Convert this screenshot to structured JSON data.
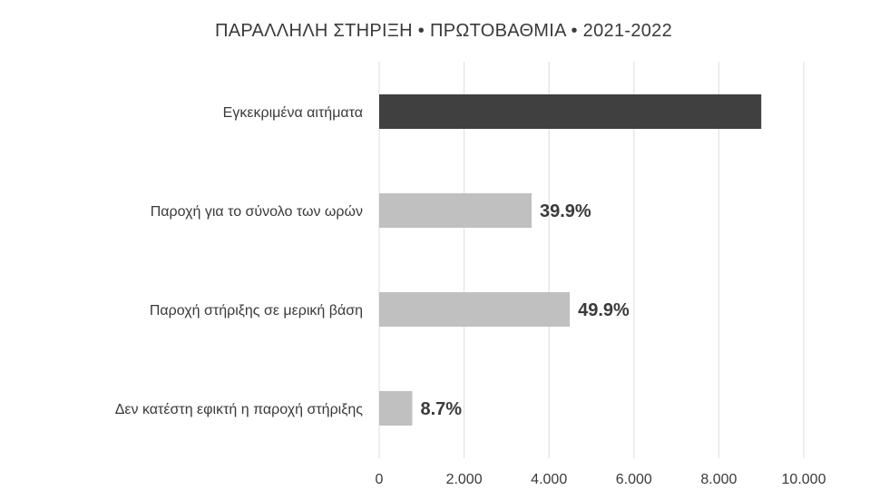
{
  "chart_data": {
    "type": "bar",
    "orientation": "horizontal",
    "title": "ΠΑΡΑΛΛΗΛΗ ΣΤΗΡΙΞΗ • ΠΡΩΤΟΒΑΘΜΙΑ • 2021-2022",
    "categories": [
      "Εγκεκριμένα αιτήματα",
      "Παροχή για το σύνολο των ωρών",
      "Παροχή στήριξης σε μερική βάση",
      "Δεν κατέστη εφικτή η παροχή στήριξης"
    ],
    "values": [
      9000,
      3590,
      4490,
      780
    ],
    "data_labels": [
      "",
      "39.9%",
      "49.9%",
      "8.7%"
    ],
    "bar_colors": [
      "#404040",
      "#c0c0c0",
      "#c0c0c0",
      "#c0c0c0"
    ],
    "xlim": [
      0,
      10000
    ],
    "x_ticks": [
      0,
      2000,
      4000,
      6000,
      8000,
      10000
    ],
    "x_tick_labels": [
      "0",
      "2.000",
      "4.000",
      "6.000",
      "8.000",
      "10.000"
    ],
    "xlabel": "",
    "ylabel": "",
    "grid": "vertical"
  }
}
